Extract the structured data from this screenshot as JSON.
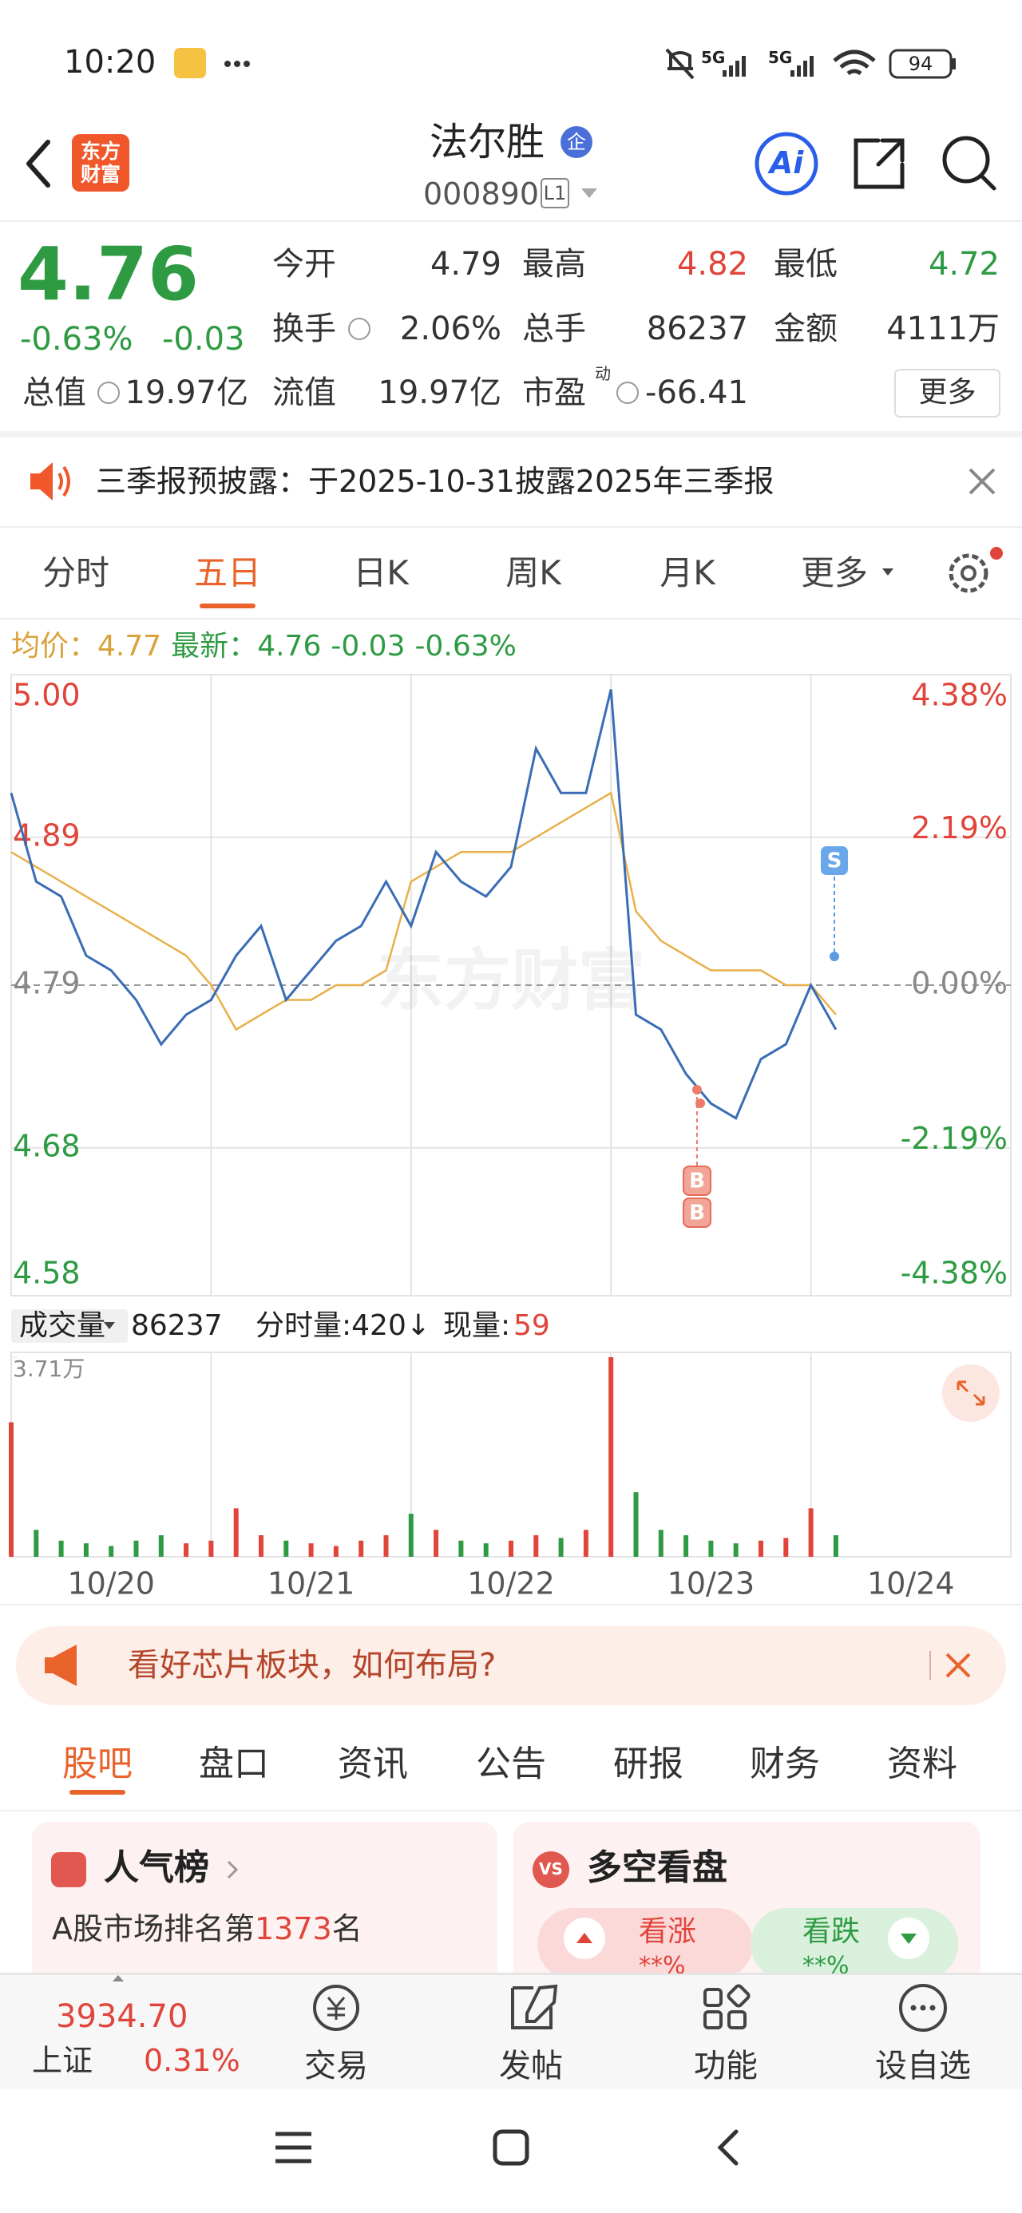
{
  "status_bar": {
    "time": "10:20",
    "network": [
      "5G",
      "5G"
    ],
    "battery": "94"
  },
  "header": {
    "logo": [
      "东方",
      "财富"
    ],
    "title": "法尔胜",
    "badge": "企",
    "code": "000890",
    "level": "L1",
    "ai": "Ai"
  },
  "quote": {
    "price": "4.76",
    "change_pct": "-0.63%",
    "change": "-0.03",
    "rows": [
      [
        {
          "label": "今开",
          "value": "4.79"
        },
        {
          "label": "最高",
          "value": "4.82"
        },
        {
          "label": "最低",
          "value": "4.72"
        }
      ],
      [
        {
          "label": "换手",
          "value": "2.06%"
        },
        {
          "label": "总手",
          "value": "86237"
        },
        {
          "label": "金额",
          "value": "4111万"
        }
      ],
      [
        {
          "label": "总值",
          "value": "19.97亿"
        },
        {
          "label": "流值",
          "value": "19.97亿"
        },
        {
          "label": "市盈",
          "sup": "动",
          "value": "-66.41"
        }
      ]
    ],
    "more": "更多"
  },
  "notice": {
    "text": "三季报预披露：于2025-10-31披露2025年三季报"
  },
  "period_tabs": [
    "分时",
    "五日",
    "日K",
    "周K",
    "月K",
    "更多"
  ],
  "info_line": {
    "avg_label": "均价：",
    "avg": "4.77",
    "latest_label": "最新：",
    "latest": "4.76",
    "change": "-0.03",
    "change_pct": "-0.63%"
  },
  "volume_row": {
    "label": "成交量",
    "total": "86237",
    "tick_volume": "分时量:420↓",
    "now_label": "现量:",
    "now": "59"
  },
  "chart_data": [
    {
      "type": "line",
      "watermark": "东方财富",
      "ylim": [
        4.58,
        5.0
      ],
      "yticks": [
        {
          "value": 5,
          "label": "5.00"
        },
        4.89,
        4.79,
        4.68,
        4.58
      ],
      "y2lim": [
        -4.38,
        4.38
      ],
      "y2ticks": [
        {
          "value": 4.38,
          "label": "4.38%"
        },
        {
          "value": 2.19,
          "label": "2.19%"
        },
        {
          "value": 0,
          "label": "0.00%"
        },
        {
          "value": -2.19,
          "label": "-2.19%"
        },
        {
          "value": -4.38,
          "label": "-4.38%"
        }
      ],
      "grid": true,
      "series": [
        {
          "color": "#3a6db5",
          "values": [
            4.92,
            4.86,
            4.85,
            4.81,
            4.8,
            4.78,
            4.75,
            4.77,
            4.78,
            4.81,
            4.83,
            4.78,
            4.8,
            4.82,
            4.83,
            4.86,
            4.83,
            4.88,
            4.86,
            4.85,
            4.87,
            4.95,
            4.92,
            4.92,
            4.99,
            4.77,
            4.76,
            4.73,
            4.71,
            4.7,
            4.74,
            4.75,
            4.79,
            4.76,
            null,
            null,
            null,
            null,
            null,
            null,
            null
          ]
        },
        {
          "color": "#e8b04a",
          "values": [
            4.88,
            4.87,
            4.86,
            4.85,
            4.84,
            4.83,
            4.82,
            4.81,
            4.79,
            4.76,
            4.77,
            4.78,
            4.78,
            4.79,
            4.79,
            4.8,
            4.86,
            4.87,
            4.88,
            4.88,
            4.88,
            4.89,
            4.9,
            4.91,
            4.92,
            4.84,
            4.82,
            4.81,
            4.8,
            4.8,
            4.8,
            4.79,
            4.79,
            4.77,
            null,
            null,
            null,
            null,
            null,
            null,
            null
          ]
        }
      ],
      "annotations": [
        {
          "text": "S"
        },
        {
          "text": "B"
        },
        {
          "text": "B"
        }
      ]
    },
    {
      "type": "bar",
      "ylim": [
        0,
        37100
      ],
      "yticks": [
        {
          "value": 37100,
          "label": "3.71万"
        }
      ],
      "up_color": "#e0443a",
      "down_color": "#2e9b43",
      "values": [
        25000,
        5000,
        3000,
        2500,
        2000,
        3000,
        4000,
        2500,
        3000,
        9000,
        4000,
        3000,
        2500,
        2000,
        3000,
        4000,
        8000,
        5000,
        3000,
        2500,
        3000,
        4000,
        3500,
        5000,
        37100,
        12000,
        5000,
        4000,
        3000,
        2500,
        3000,
        3500,
        9000,
        4000,
        null,
        null,
        null,
        null,
        null,
        null,
        null
      ],
      "day_labels": [
        "10/20",
        "10/21",
        "10/22",
        "10/23",
        "10/24"
      ]
    }
  ],
  "ad_banner": {
    "text": "看好芯片板块，如何布局?"
  },
  "content_tabs": [
    "股吧",
    "盘口",
    "资讯",
    "公告",
    "研报",
    "财务",
    "资料"
  ],
  "cards": {
    "popularity": {
      "title": "人气榜",
      "rank_prefix": "A股市场排名第",
      "rank": "1373",
      "rank_suffix": "名"
    },
    "sentiment": {
      "icon": "VS",
      "title": "多空看盘",
      "bull": "看涨",
      "bull_pct": "**%",
      "bear": "看跌",
      "bear_pct": "**%"
    }
  },
  "bottom_nav": {
    "index_value": "3934.70",
    "index_name": "上证",
    "index_change": "0.31%",
    "items": [
      "交易",
      "发帖",
      "功能",
      "设自选"
    ]
  }
}
